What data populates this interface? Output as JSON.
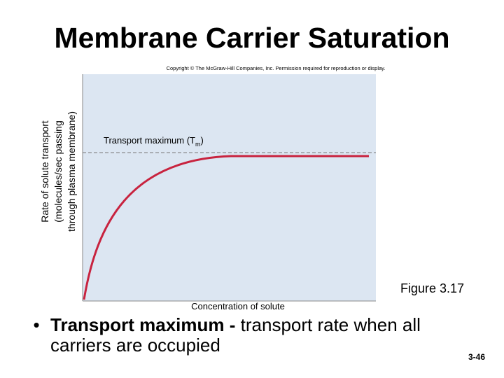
{
  "title": "Membrane Carrier Saturation",
  "copyright": "Copyright © The McGraw-Hill Companies, Inc. Permission required for reproduction or display.",
  "figure": {
    "y_axis_label": [
      "Rate of solute transport",
      "(molecules/sec passing",
      "through plasma membrane)"
    ],
    "x_axis_label": "Concentration of solute",
    "tm_label": {
      "text": "Transport maximum (T",
      "subscript": "m",
      "close": ")"
    },
    "caption": "Figure 3.17"
  },
  "bullet": {
    "term": "Transport maximum -",
    "definition": "transport rate when all carriers are occupied"
  },
  "page_number": "3-46"
}
